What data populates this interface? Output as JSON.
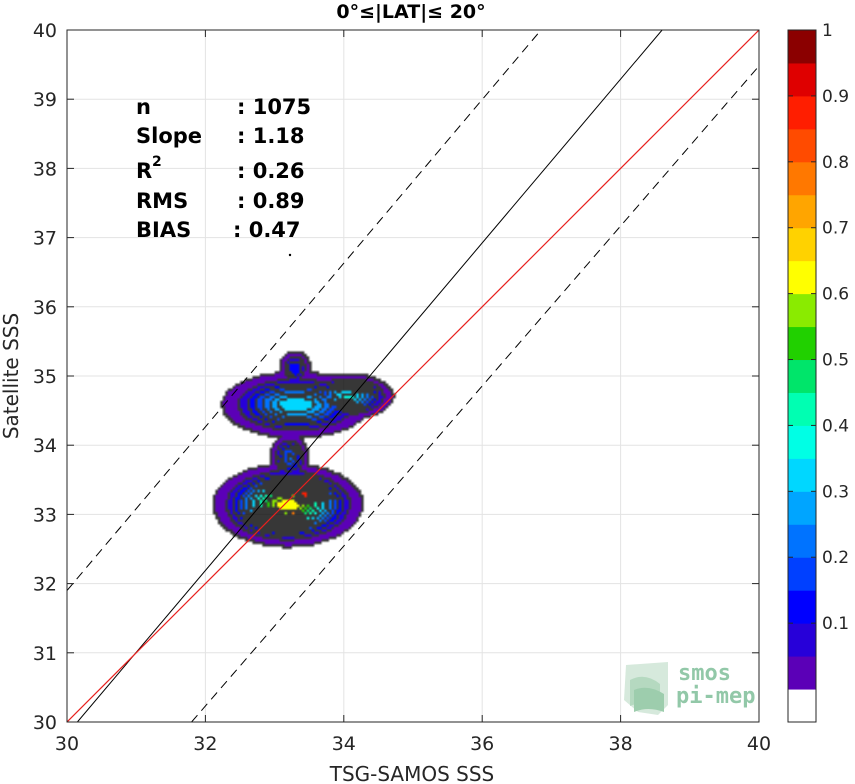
{
  "chart_data": {
    "type": "contour",
    "title": "0°≤|LAT|≤ 20°",
    "xlabel": "TSG-SAMOS SSS",
    "ylabel": "Satellite SSS",
    "xlim": [
      30,
      40
    ],
    "ylim": [
      30,
      40
    ],
    "xticks": [
      "30",
      "32",
      "34",
      "36",
      "38",
      "40"
    ],
    "yticks": [
      "30",
      "31",
      "32",
      "33",
      "34",
      "35",
      "36",
      "37",
      "38",
      "39",
      "40"
    ],
    "grid": true,
    "stats": {
      "n_label": "n",
      "n_value": ": 1075",
      "slope_label": "Slope",
      "slope_value": ": 1.18",
      "r2_label": "R",
      "r2_sup": "2",
      "r2_value": ": 0.26",
      "rms_label": "RMS",
      "rms_value": ": 0.89",
      "bias_label": "BIAS",
      "bias_value": ": 0.47"
    },
    "lines": {
      "identity": {
        "color": "#e8201e",
        "points": [
          [
            30,
            30
          ],
          [
            40,
            40
          ]
        ]
      },
      "regression": {
        "color": "#000000",
        "slope": 1.18,
        "points": [
          [
            30.15,
            30.0
          ],
          [
            38.6,
            40.0
          ]
        ]
      },
      "upper_bound_dashed": {
        "color": "#000000",
        "points": [
          [
            30.0,
            31.9
          ],
          [
            36.85,
            40.0
          ]
        ]
      },
      "lower_bound_dashed": {
        "color": "#000000",
        "points": [
          [
            31.8,
            30.0
          ],
          [
            40.0,
            39.48
          ]
        ]
      }
    },
    "density_blobs": [
      {
        "x": 33.3,
        "y": 34.6,
        "sx": 0.5,
        "sy": 0.22,
        "peak": 0.4
      },
      {
        "x": 34.05,
        "y": 34.72,
        "sx": 0.3,
        "sy": 0.15,
        "peak": 0.42
      },
      {
        "x": 33.28,
        "y": 35.12,
        "sx": 0.12,
        "sy": 0.14,
        "peak": 0.2
      },
      {
        "x": 33.2,
        "y": 33.83,
        "sx": 0.14,
        "sy": 0.18,
        "peak": 0.26
      },
      {
        "x": 33.18,
        "y": 33.15,
        "sx": 0.45,
        "sy": 0.25,
        "peak": 0.7
      },
      {
        "x": 33.42,
        "y": 33.3,
        "sx": 0.16,
        "sy": 0.14,
        "peak": 0.95
      },
      {
        "x": 33.25,
        "y": 33.03,
        "sx": 0.12,
        "sy": 0.08,
        "peak": 0.85
      }
    ],
    "colorbar": {
      "range": [
        0,
        1
      ],
      "ticks": [
        "0.1",
        "0.2",
        "0.3",
        "0.4",
        "0.5",
        "0.6",
        "0.7",
        "0.8",
        "0.9",
        "1"
      ],
      "colors": [
        "#ffffff",
        "#5b00b7",
        "#2700d9",
        "#0000ff",
        "#0040ff",
        "#0073ff",
        "#00a5ff",
        "#00d7ff",
        "#00ffe5",
        "#00ffb2",
        "#00e56a",
        "#21d000",
        "#8aeb00",
        "#ffff00",
        "#ffd200",
        "#ffa500",
        "#ff7800",
        "#ff4b00",
        "#ff1e00",
        "#df0000",
        "#8b0000"
      ]
    }
  },
  "logo": {
    "line1": "smos",
    "line2": "pi-mep"
  }
}
